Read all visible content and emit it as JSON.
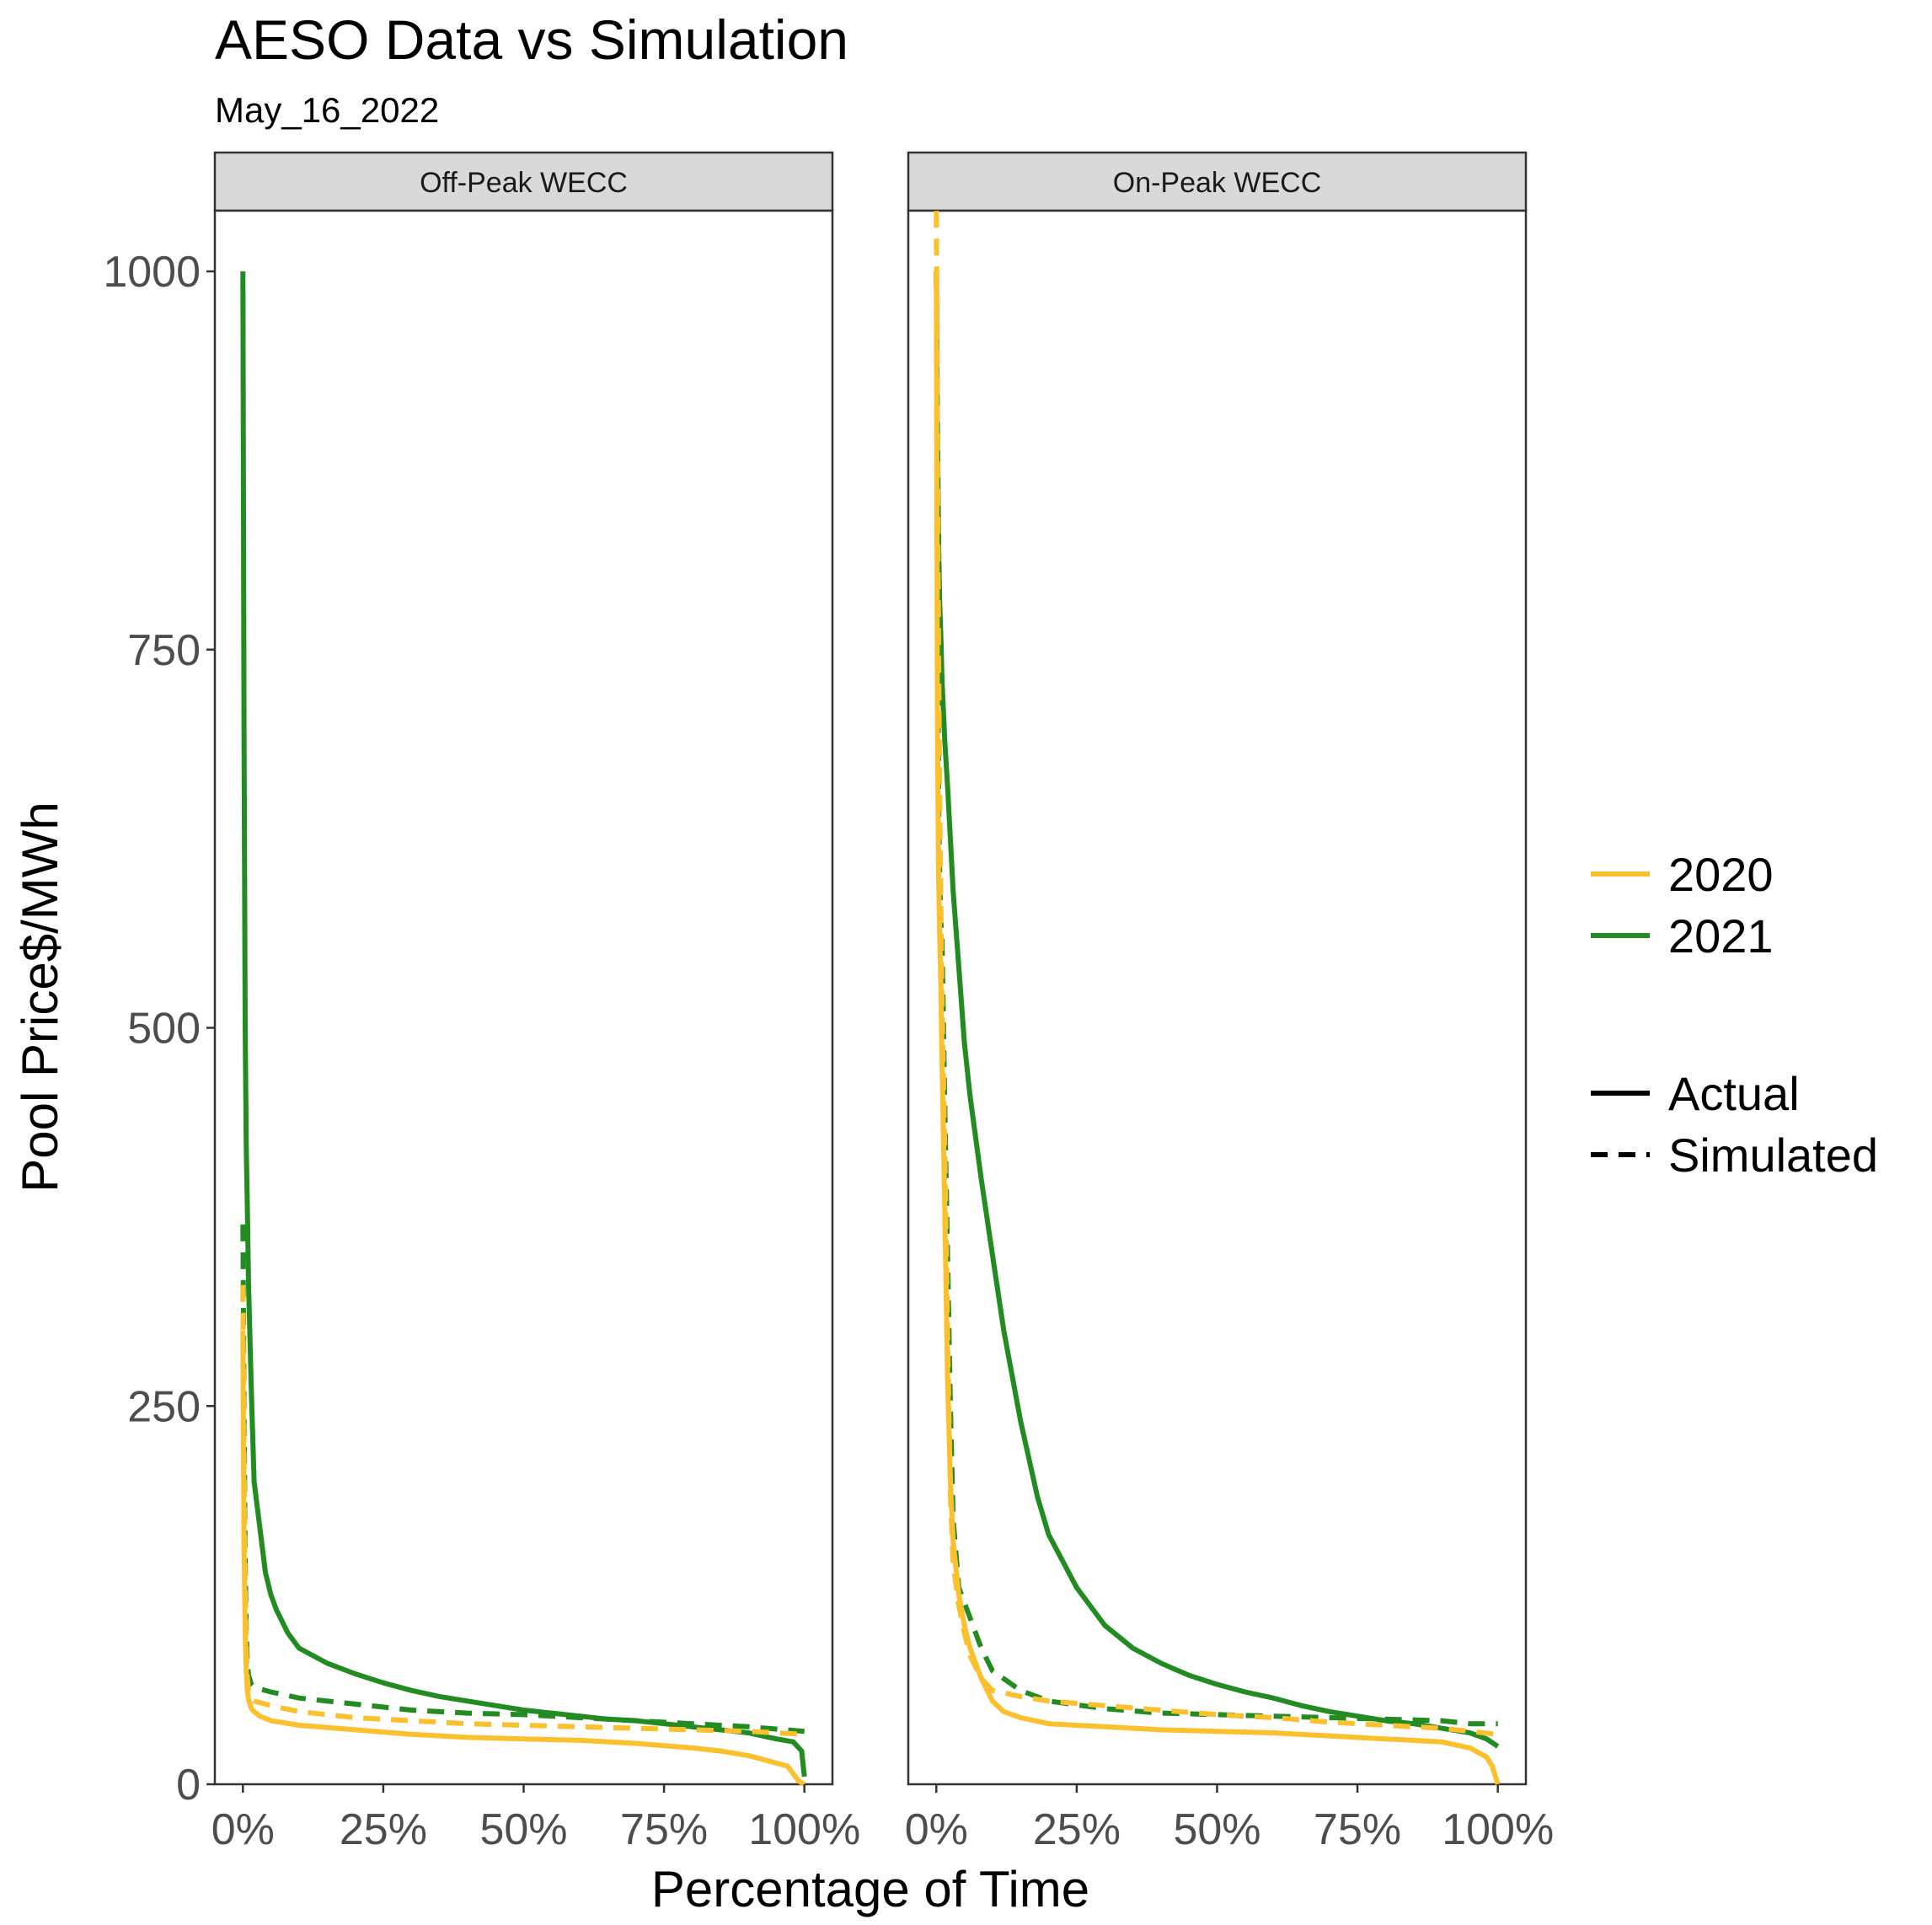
{
  "chart_data": {
    "type": "line",
    "title": "AESO Data vs Simulation",
    "subtitle": "May_16_2022",
    "xlabel": "Percentage of Time",
    "ylabel": "Pool Price$/MWh",
    "xlim": [
      0,
      1
    ],
    "ylim": [
      0,
      1000
    ],
    "x_ticks": [
      "0%",
      "25%",
      "50%",
      "75%",
      "100%"
    ],
    "y_ticks": [
      "0",
      "250",
      "500",
      "750",
      "1000"
    ],
    "grid": false,
    "legend_position": "right",
    "legend_color": {
      "entries": [
        {
          "label": "2020",
          "color": "#FBC02D"
        },
        {
          "label": "2021",
          "color": "#228B22"
        }
      ]
    },
    "legend_linetype": {
      "entries": [
        {
          "label": "Actual",
          "dash": "solid"
        },
        {
          "label": "Simulated",
          "dash": "dashed"
        }
      ]
    },
    "panels": [
      {
        "label": "Off-Peak WECC",
        "series": [
          {
            "year": "2021",
            "type": "Actual",
            "x": [
              0.0,
              0.002,
              0.004,
              0.006,
              0.008,
              0.01,
              0.015,
              0.02,
              0.03,
              0.04,
              0.05,
              0.06,
              0.08,
              0.1,
              0.15,
              0.2,
              0.25,
              0.3,
              0.35,
              0.4,
              0.45,
              0.5,
              0.55,
              0.6,
              0.65,
              0.7,
              0.75,
              0.8,
              0.85,
              0.9,
              0.95,
              0.98,
              0.995,
              1.0
            ],
            "y": [
              1000,
              700,
              500,
              420,
              380,
              330,
              260,
              200,
              170,
              140,
              125,
              115,
              100,
              90,
              80,
              73,
              67,
              62,
              58,
              55,
              52,
              49,
              47,
              45,
              43,
              42,
              40,
              38,
              36,
              34,
              30,
              28,
              22,
              5
            ]
          },
          {
            "year": "2021",
            "type": "Simulated",
            "x": [
              0.0,
              0.002,
              0.004,
              0.006,
              0.008,
              0.01,
              0.015,
              0.02,
              0.03,
              0.05,
              0.1,
              0.2,
              0.3,
              0.4,
              0.5,
              0.6,
              0.7,
              0.8,
              0.9,
              1.0
            ],
            "y": [
              370,
              250,
              150,
              100,
              80,
              72,
              66,
              64,
              63,
              61,
              57,
              53,
              49,
              47,
              46,
              44,
              42,
              40,
              38,
              35
            ]
          },
          {
            "year": "2020",
            "type": "Actual",
            "x": [
              0.0,
              0.002,
              0.004,
              0.006,
              0.008,
              0.01,
              0.015,
              0.02,
              0.03,
              0.05,
              0.1,
              0.2,
              0.3,
              0.4,
              0.5,
              0.6,
              0.7,
              0.8,
              0.85,
              0.9,
              0.95,
              0.97,
              0.98,
              0.99,
              1.0
            ],
            "y": [
              300,
              160,
              100,
              75,
              62,
              56,
              50,
              48,
              45,
              42,
              39,
              36,
              33,
              31,
              30,
              29,
              27,
              24,
              22,
              19,
              14,
              12,
              7,
              2,
              0
            ]
          },
          {
            "year": "2020",
            "type": "Simulated",
            "x": [
              0.0,
              0.002,
              0.004,
              0.006,
              0.008,
              0.01,
              0.015,
              0.02,
              0.03,
              0.05,
              0.1,
              0.2,
              0.3,
              0.4,
              0.5,
              0.6,
              0.7,
              0.8,
              0.9,
              1.0
            ],
            "y": [
              330,
              220,
              130,
              90,
              70,
              62,
              57,
              55,
              54,
              52,
              48,
              44,
              42,
              40,
              39,
              38,
              37,
              36,
              35,
              33
            ]
          }
        ]
      },
      {
        "label": "On-Peak WECC",
        "series": [
          {
            "year": "2021",
            "type": "Actual",
            "x": [
              0.0,
              0.002,
              0.004,
              0.006,
              0.008,
              0.01,
              0.015,
              0.02,
              0.03,
              0.04,
              0.05,
              0.06,
              0.08,
              0.1,
              0.12,
              0.15,
              0.18,
              0.2,
              0.25,
              0.3,
              0.35,
              0.4,
              0.45,
              0.5,
              0.55,
              0.6,
              0.65,
              0.7,
              0.75,
              0.8,
              0.85,
              0.9,
              0.95,
              0.98,
              1.0
            ],
            "y": [
              1000,
              900,
              820,
              780,
              760,
              730,
              690,
              660,
              590,
              540,
              490,
              455,
              400,
              350,
              300,
              240,
              190,
              165,
              130,
              105,
              90,
              80,
              72,
              66,
              61,
              57,
              52,
              48,
              45,
              42,
              40,
              37,
              34,
              30,
              25
            ]
          },
          {
            "year": "2021",
            "type": "Simulated",
            "x": [
              0.0,
              0.002,
              0.004,
              0.006,
              0.008,
              0.01,
              0.015,
              0.02,
              0.025,
              0.03,
              0.04,
              0.05,
              0.06,
              0.08,
              0.1,
              0.15,
              0.2,
              0.3,
              0.4,
              0.5,
              0.6,
              0.7,
              0.8,
              0.9,
              0.95,
              1.0
            ],
            "y": [
              1000,
              850,
              650,
              600,
              570,
              560,
              450,
              350,
              250,
              175,
              130,
              120,
              110,
              90,
              75,
              62,
              55,
              50,
              47,
              46,
              45,
              44,
              43,
              42,
              40,
              40
            ]
          },
          {
            "year": "2020",
            "type": "Actual",
            "x": [
              0.0,
              0.002,
              0.004,
              0.006,
              0.008,
              0.01,
              0.015,
              0.02,
              0.025,
              0.03,
              0.04,
              0.05,
              0.06,
              0.08,
              0.1,
              0.12,
              0.15,
              0.2,
              0.3,
              0.4,
              0.5,
              0.6,
              0.7,
              0.8,
              0.9,
              0.95,
              0.98,
              0.99,
              1.0
            ],
            "y": [
              1000,
              700,
              600,
              560,
              530,
              480,
              380,
              270,
              200,
              160,
              125,
              105,
              90,
              70,
              55,
              48,
              44,
              40,
              38,
              36,
              35,
              34,
              32,
              30,
              28,
              24,
              18,
              12,
              0
            ]
          },
          {
            "year": "2020",
            "type": "Simulated",
            "x": [
              0.0,
              0.002,
              0.004,
              0.006,
              0.008,
              0.01,
              0.015,
              0.02,
              0.025,
              0.03,
              0.04,
              0.05,
              0.06,
              0.08,
              0.1,
              0.15,
              0.2,
              0.3,
              0.4,
              0.5,
              0.6,
              0.7,
              0.8,
              0.9,
              0.95,
              1.0
            ],
            "y": [
              1040,
              900,
              750,
              650,
              580,
              520,
              420,
              300,
              190,
              145,
              118,
              100,
              85,
              70,
              62,
              58,
              55,
              52,
              49,
              46,
              44,
              41,
              39,
              37,
              35,
              33
            ]
          }
        ]
      }
    ]
  }
}
